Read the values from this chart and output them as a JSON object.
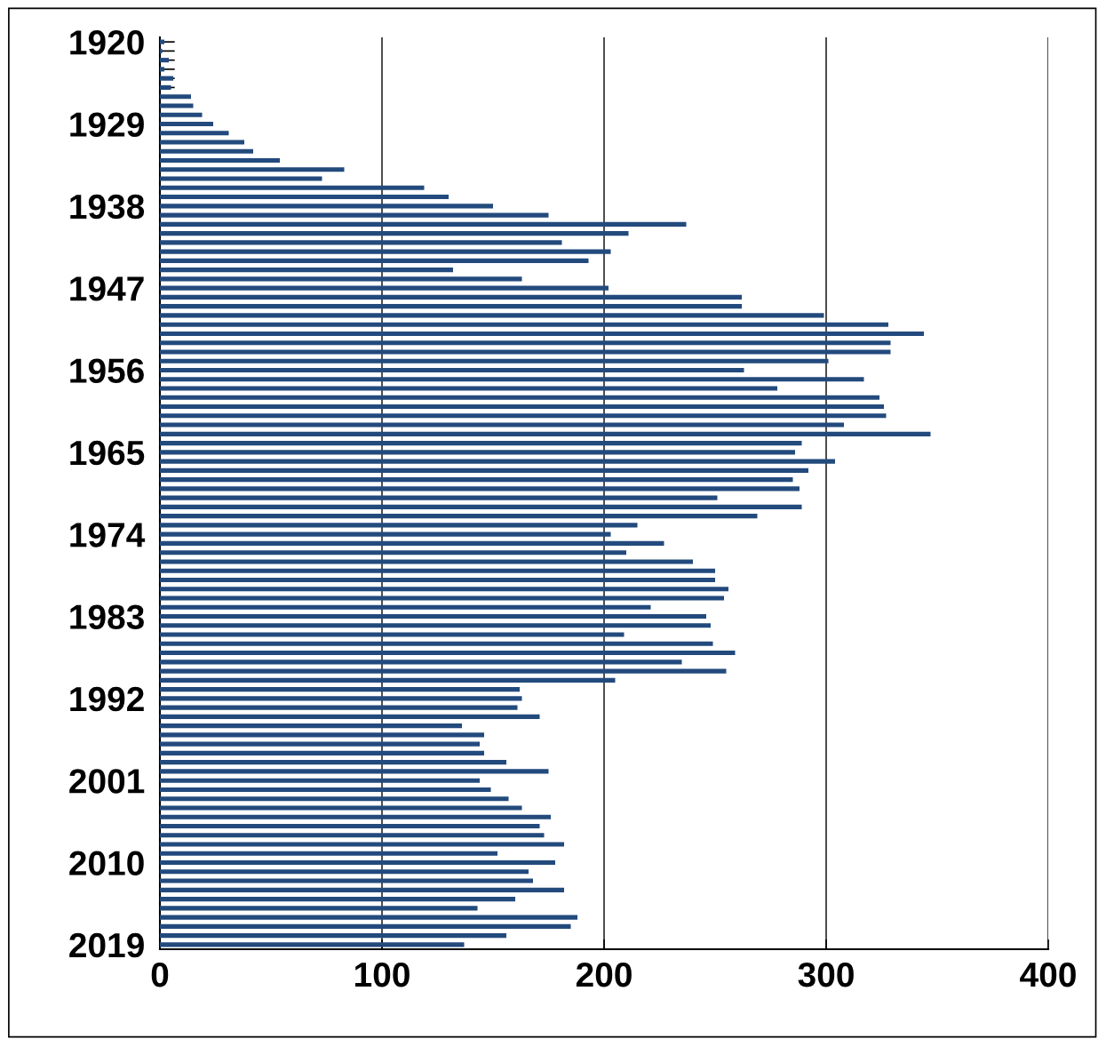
{
  "chart_data": {
    "type": "bar",
    "orientation": "horizontal",
    "color": "#234a7d",
    "categories": [
      "1920",
      null,
      null,
      null,
      null,
      null,
      null,
      null,
      null,
      "1929",
      null,
      null,
      null,
      null,
      null,
      null,
      null,
      null,
      "1938",
      null,
      null,
      null,
      null,
      null,
      null,
      null,
      null,
      "1947",
      null,
      null,
      null,
      null,
      null,
      null,
      null,
      null,
      "1956",
      null,
      null,
      null,
      null,
      null,
      null,
      null,
      null,
      "1965",
      null,
      null,
      null,
      null,
      null,
      null,
      null,
      null,
      "1974",
      null,
      null,
      null,
      null,
      null,
      null,
      null,
      null,
      "1983",
      null,
      null,
      null,
      null,
      null,
      null,
      null,
      null,
      "1992",
      null,
      null,
      null,
      null,
      null,
      null,
      null,
      null,
      "2001",
      null,
      null,
      null,
      null,
      null,
      null,
      null,
      null,
      "2010",
      null,
      null,
      null,
      null,
      null,
      null,
      null,
      null,
      "2019"
    ],
    "values": [
      2,
      1,
      4,
      2,
      6,
      5,
      14,
      15,
      19,
      24,
      31,
      38,
      42,
      54,
      83,
      73,
      119,
      130,
      150,
      175,
      237,
      211,
      181,
      203,
      193,
      132,
      163,
      202,
      262,
      262,
      299,
      328,
      344,
      329,
      329,
      301,
      263,
      317,
      278,
      324,
      326,
      327,
      308,
      347,
      289,
      286,
      304,
      292,
      285,
      288,
      251,
      289,
      269,
      215,
      203,
      227,
      210,
      240,
      250,
      250,
      256,
      254,
      221,
      246,
      248,
      209,
      249,
      259,
      235,
      255,
      205,
      162,
      163,
      161,
      171,
      136,
      146,
      144,
      146,
      156,
      175,
      144,
      149,
      157,
      163,
      176,
      171,
      173,
      182,
      152,
      178,
      166,
      168,
      182,
      160,
      143,
      188,
      185,
      156,
      137
    ],
    "xlim": [
      0,
      400
    ],
    "xticks": [
      0,
      100,
      200,
      300,
      400
    ],
    "grid": "x"
  }
}
